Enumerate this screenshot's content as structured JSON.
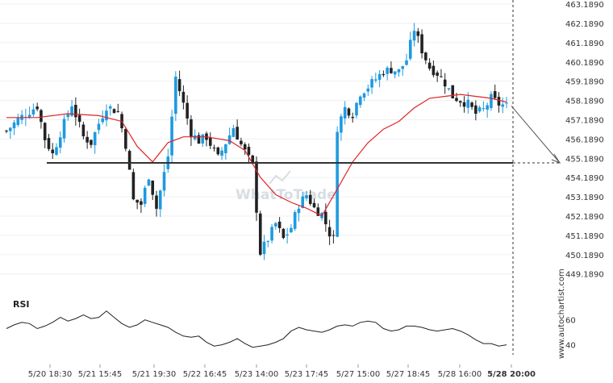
{
  "watermark": "WhatToTrade",
  "credit": "www.autochartist.com",
  "chart_data": {
    "type": "candlestick",
    "price_axis": {
      "side": "right",
      "ticks": [
        "463.1890",
        "462.1890",
        "461.1890",
        "460.1890",
        "459.1890",
        "458.1890",
        "457.1890",
        "456.1890",
        "455.1890",
        "454.1890",
        "453.1890",
        "452.1890",
        "451.1890",
        "450.1890",
        "449.1890"
      ],
      "range": [
        448.55,
        463.4
      ]
    },
    "time_axis": {
      "labels": [
        "5/20 18:30",
        "5/21 15:45",
        "5/21 19:30",
        "5/22 16:45",
        "5/23 14:00",
        "5/23 17:45",
        "5/27 15:00",
        "5/27 18:45",
        "5/28 16:00",
        "5/28 20:00"
      ],
      "highlighted": "5/28 20:00"
    },
    "support_level": {
      "value": 454.95
    },
    "projection": {
      "from": 457.9,
      "to": 454.95
    },
    "moving_average_color": "#e02424",
    "bull_color": "#1e9ae0",
    "bear_color": "#222222",
    "close_path": [
      [
        0,
        456.6
      ],
      [
        3,
        457.2
      ],
      [
        5,
        457.5
      ],
      [
        8,
        457.9
      ],
      [
        10,
        456.2
      ],
      [
        12,
        455.4
      ],
      [
        14,
        456.5
      ],
      [
        17,
        458.0
      ],
      [
        20,
        456.3
      ],
      [
        22,
        456.0
      ],
      [
        24,
        457.0
      ],
      [
        26,
        457.9
      ],
      [
        29,
        457.6
      ],
      [
        31,
        455.9
      ],
      [
        33,
        453.0
      ],
      [
        35,
        452.8
      ],
      [
        37,
        454.3
      ],
      [
        39,
        452.6
      ],
      [
        42,
        455.3
      ],
      [
        44,
        459.4
      ],
      [
        46,
        458.0
      ],
      [
        48,
        456.5
      ],
      [
        50,
        456.1
      ],
      [
        52,
        456.3
      ],
      [
        55,
        455.2
      ],
      [
        57,
        456.0
      ],
      [
        59,
        456.8
      ],
      [
        61,
        455.9
      ],
      [
        64,
        454.8
      ],
      [
        66,
        450.3
      ],
      [
        68,
        451.0
      ],
      [
        70,
        451.8
      ],
      [
        72,
        451.0
      ],
      [
        74,
        451.6
      ],
      [
        76,
        452.8
      ],
      [
        78,
        453.3
      ],
      [
        80,
        452.6
      ],
      [
        82,
        452.3
      ],
      [
        84,
        451.3
      ],
      [
        85,
        451.0
      ],
      [
        86,
        456.8
      ],
      [
        88,
        457.8
      ],
      [
        90,
        457.5
      ],
      [
        92,
        458.6
      ],
      [
        94,
        458.9
      ],
      [
        96,
        459.3
      ],
      [
        98,
        459.7
      ],
      [
        100,
        459.8
      ],
      [
        102,
        459.7
      ],
      [
        104,
        460.3
      ],
      [
        106,
        461.9
      ],
      [
        108,
        460.8
      ],
      [
        110,
        459.9
      ],
      [
        112,
        459.6
      ],
      [
        114,
        459.1
      ],
      [
        116,
        458.4
      ],
      [
        118,
        458.2
      ],
      [
        120,
        458.0
      ],
      [
        122,
        457.5
      ],
      [
        124,
        457.7
      ],
      [
        126,
        458.3
      ],
      [
        128,
        458.0
      ],
      [
        130,
        457.9
      ]
    ],
    "ma_path": [
      [
        0,
        457.3
      ],
      [
        8,
        457.3
      ],
      [
        16,
        457.5
      ],
      [
        24,
        457.4
      ],
      [
        30,
        457.1
      ],
      [
        34,
        455.8
      ],
      [
        38,
        455.0
      ],
      [
        42,
        456.0
      ],
      [
        46,
        456.3
      ],
      [
        52,
        456.3
      ],
      [
        58,
        456.1
      ],
      [
        62,
        455.6
      ],
      [
        66,
        454.2
      ],
      [
        70,
        453.3
      ],
      [
        74,
        452.9
      ],
      [
        78,
        452.6
      ],
      [
        82,
        452.2
      ],
      [
        86,
        453.6
      ],
      [
        90,
        455.0
      ],
      [
        94,
        456.0
      ],
      [
        98,
        456.7
      ],
      [
        102,
        457.1
      ],
      [
        106,
        457.8
      ],
      [
        110,
        458.3
      ],
      [
        114,
        458.4
      ],
      [
        118,
        458.5
      ],
      [
        122,
        458.4
      ],
      [
        126,
        458.3
      ],
      [
        130,
        458.1
      ]
    ]
  },
  "rsi": {
    "label": "RSI",
    "ticks": [
      "60",
      "40"
    ],
    "range": [
      32,
      74
    ],
    "path": [
      [
        0,
        53
      ],
      [
        2,
        56
      ],
      [
        4,
        58
      ],
      [
        6,
        57
      ],
      [
        8,
        53
      ],
      [
        10,
        55
      ],
      [
        12,
        58
      ],
      [
        14,
        62
      ],
      [
        16,
        59
      ],
      [
        18,
        61
      ],
      [
        20,
        64
      ],
      [
        22,
        61
      ],
      [
        24,
        62
      ],
      [
        26,
        67
      ],
      [
        28,
        62
      ],
      [
        30,
        57
      ],
      [
        32,
        54
      ],
      [
        34,
        56
      ],
      [
        36,
        60
      ],
      [
        38,
        58
      ],
      [
        40,
        56
      ],
      [
        42,
        54
      ],
      [
        44,
        50
      ],
      [
        46,
        47
      ],
      [
        48,
        46
      ],
      [
        50,
        47
      ],
      [
        52,
        42
      ],
      [
        54,
        39
      ],
      [
        56,
        40
      ],
      [
        58,
        42
      ],
      [
        60,
        45
      ],
      [
        62,
        41
      ],
      [
        64,
        38
      ],
      [
        66,
        39
      ],
      [
        68,
        40
      ],
      [
        70,
        42
      ],
      [
        72,
        45
      ],
      [
        74,
        51
      ],
      [
        76,
        54
      ],
      [
        78,
        52
      ],
      [
        80,
        51
      ],
      [
        82,
        50
      ],
      [
        84,
        52
      ],
      [
        86,
        55
      ],
      [
        88,
        56
      ],
      [
        90,
        55
      ],
      [
        92,
        58
      ],
      [
        94,
        59
      ],
      [
        96,
        58
      ],
      [
        98,
        53
      ],
      [
        100,
        51
      ],
      [
        102,
        52
      ],
      [
        104,
        55
      ],
      [
        106,
        55
      ],
      [
        108,
        54
      ],
      [
        110,
        52
      ],
      [
        112,
        51
      ],
      [
        114,
        52
      ],
      [
        116,
        53
      ],
      [
        118,
        51
      ],
      [
        120,
        48
      ],
      [
        122,
        44
      ],
      [
        124,
        41
      ],
      [
        126,
        41
      ],
      [
        128,
        39
      ],
      [
        130,
        40
      ]
    ]
  }
}
